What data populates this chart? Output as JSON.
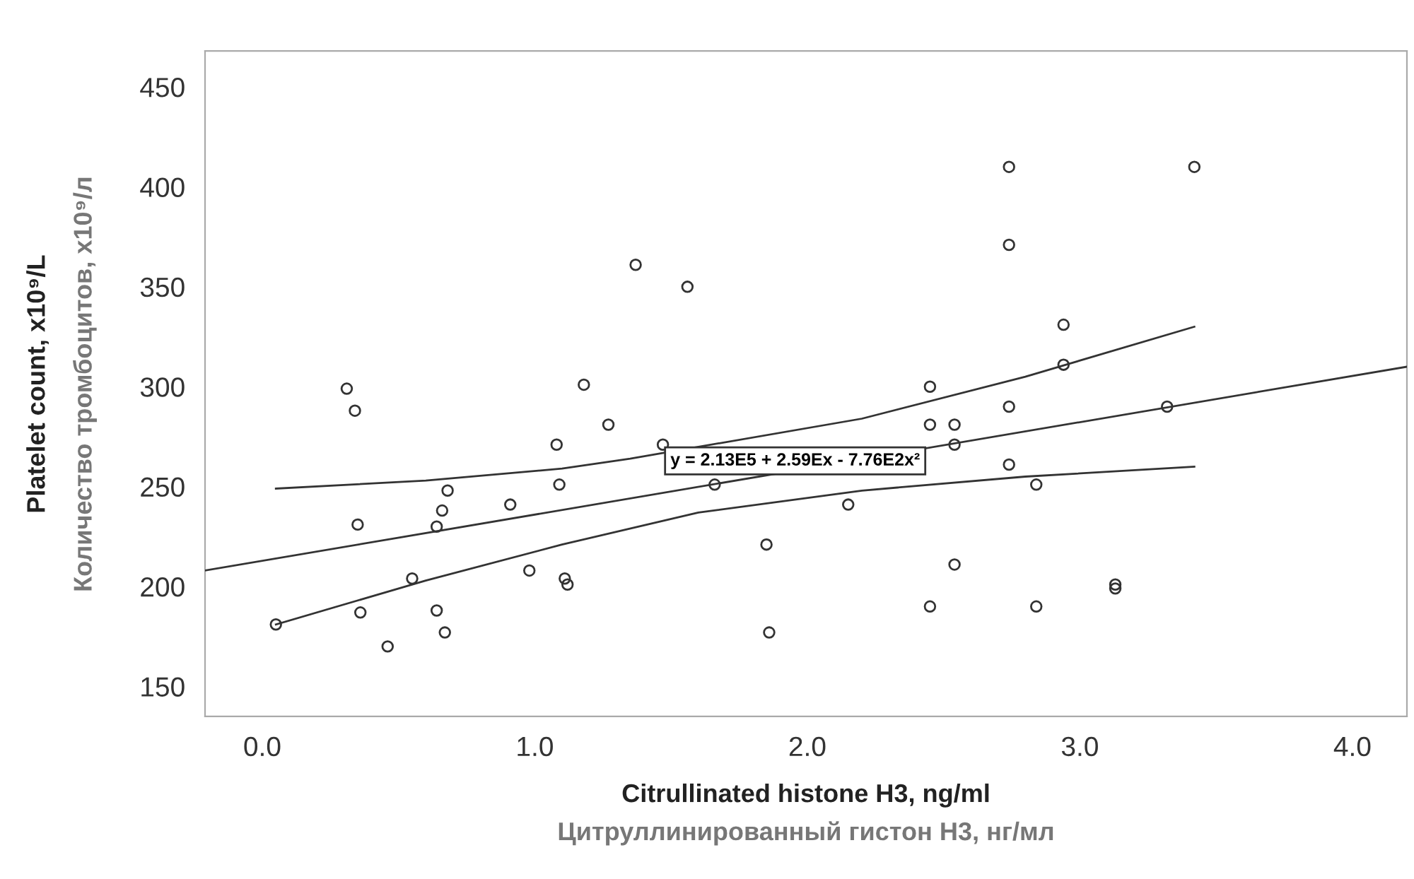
{
  "chart_data": {
    "type": "scatter",
    "xlabel": "Citrullinated histone H3, ng/ml\nЦитруллинированный гистон Н3, нг/мл",
    "ylabel": "Platelet count, x10⁹/L\nКоличество тромбоцитов, x10⁹/л",
    "series": [
      {
        "color": "#333333",
        "marker": "circle",
        "x": [
          0.05,
          0.31,
          0.34,
          0.35,
          0.36,
          0.55,
          0.46,
          0.64,
          0.66,
          0.68,
          0.64,
          0.67,
          0.91,
          0.98,
          1.08,
          1.09,
          1.11,
          1.12,
          1.18,
          1.27,
          1.37,
          1.56,
          1.47,
          1.66,
          1.85,
          1.86,
          2.15,
          2.45,
          2.45,
          2.54,
          2.54,
          2.45,
          2.54,
          2.74,
          2.74,
          2.74,
          2.74,
          2.84,
          2.84,
          2.94,
          2.94,
          3.13,
          3.13,
          3.32,
          3.42
        ],
        "values": [
          181,
          299,
          288,
          231,
          187,
          204,
          170,
          230,
          238,
          248,
          188,
          177,
          241,
          208,
          271,
          251,
          204,
          201,
          301,
          281,
          361,
          350,
          271,
          251,
          221,
          177,
          241,
          300,
          281,
          281,
          271,
          190,
          211,
          410,
          371,
          290,
          261,
          251,
          190,
          331,
          311,
          201,
          199,
          290,
          410
        ]
      },
      {
        "type": "line",
        "color": "#333333",
        "marker": "none",
        "line_style": "solid",
        "x": [
          -0.21,
          4.2
        ],
        "values": [
          208,
          310
        ]
      },
      {
        "type": "line",
        "color": "#333333",
        "marker": "none",
        "line_style": "solid",
        "x": [
          0.05,
          0.6,
          1.1,
          1.6,
          2.2,
          2.8,
          3.42
        ],
        "values": [
          181,
          203,
          221,
          237,
          248,
          255,
          260
        ]
      },
      {
        "type": "line",
        "color": "#333333",
        "marker": "none",
        "line_style": "solid",
        "x": [
          0.05,
          0.6,
          1.1,
          1.35,
          2.2,
          2.8,
          3.42
        ],
        "values": [
          249,
          253,
          259,
          264,
          284,
          305,
          330
        ]
      }
    ],
    "annotations": [
      "y = 2.13E5 + 2.59Ex - 7.76E2x²"
    ],
    "xlim": [
      -0.21,
      4.2
    ],
    "xticks": [
      {
        "value": 0,
        "label": "0.0"
      },
      {
        "value": 1,
        "label": "1.0"
      },
      {
        "value": 2,
        "label": "2.0"
      },
      {
        "value": 3,
        "label": "3.0"
      },
      {
        "value": 4,
        "label": "4.0"
      }
    ],
    "ylim": [
      135,
      468
    ],
    "yticks": [
      150,
      200,
      250,
      300,
      350,
      400,
      450
    ],
    "grid": false,
    "legend": false
  }
}
